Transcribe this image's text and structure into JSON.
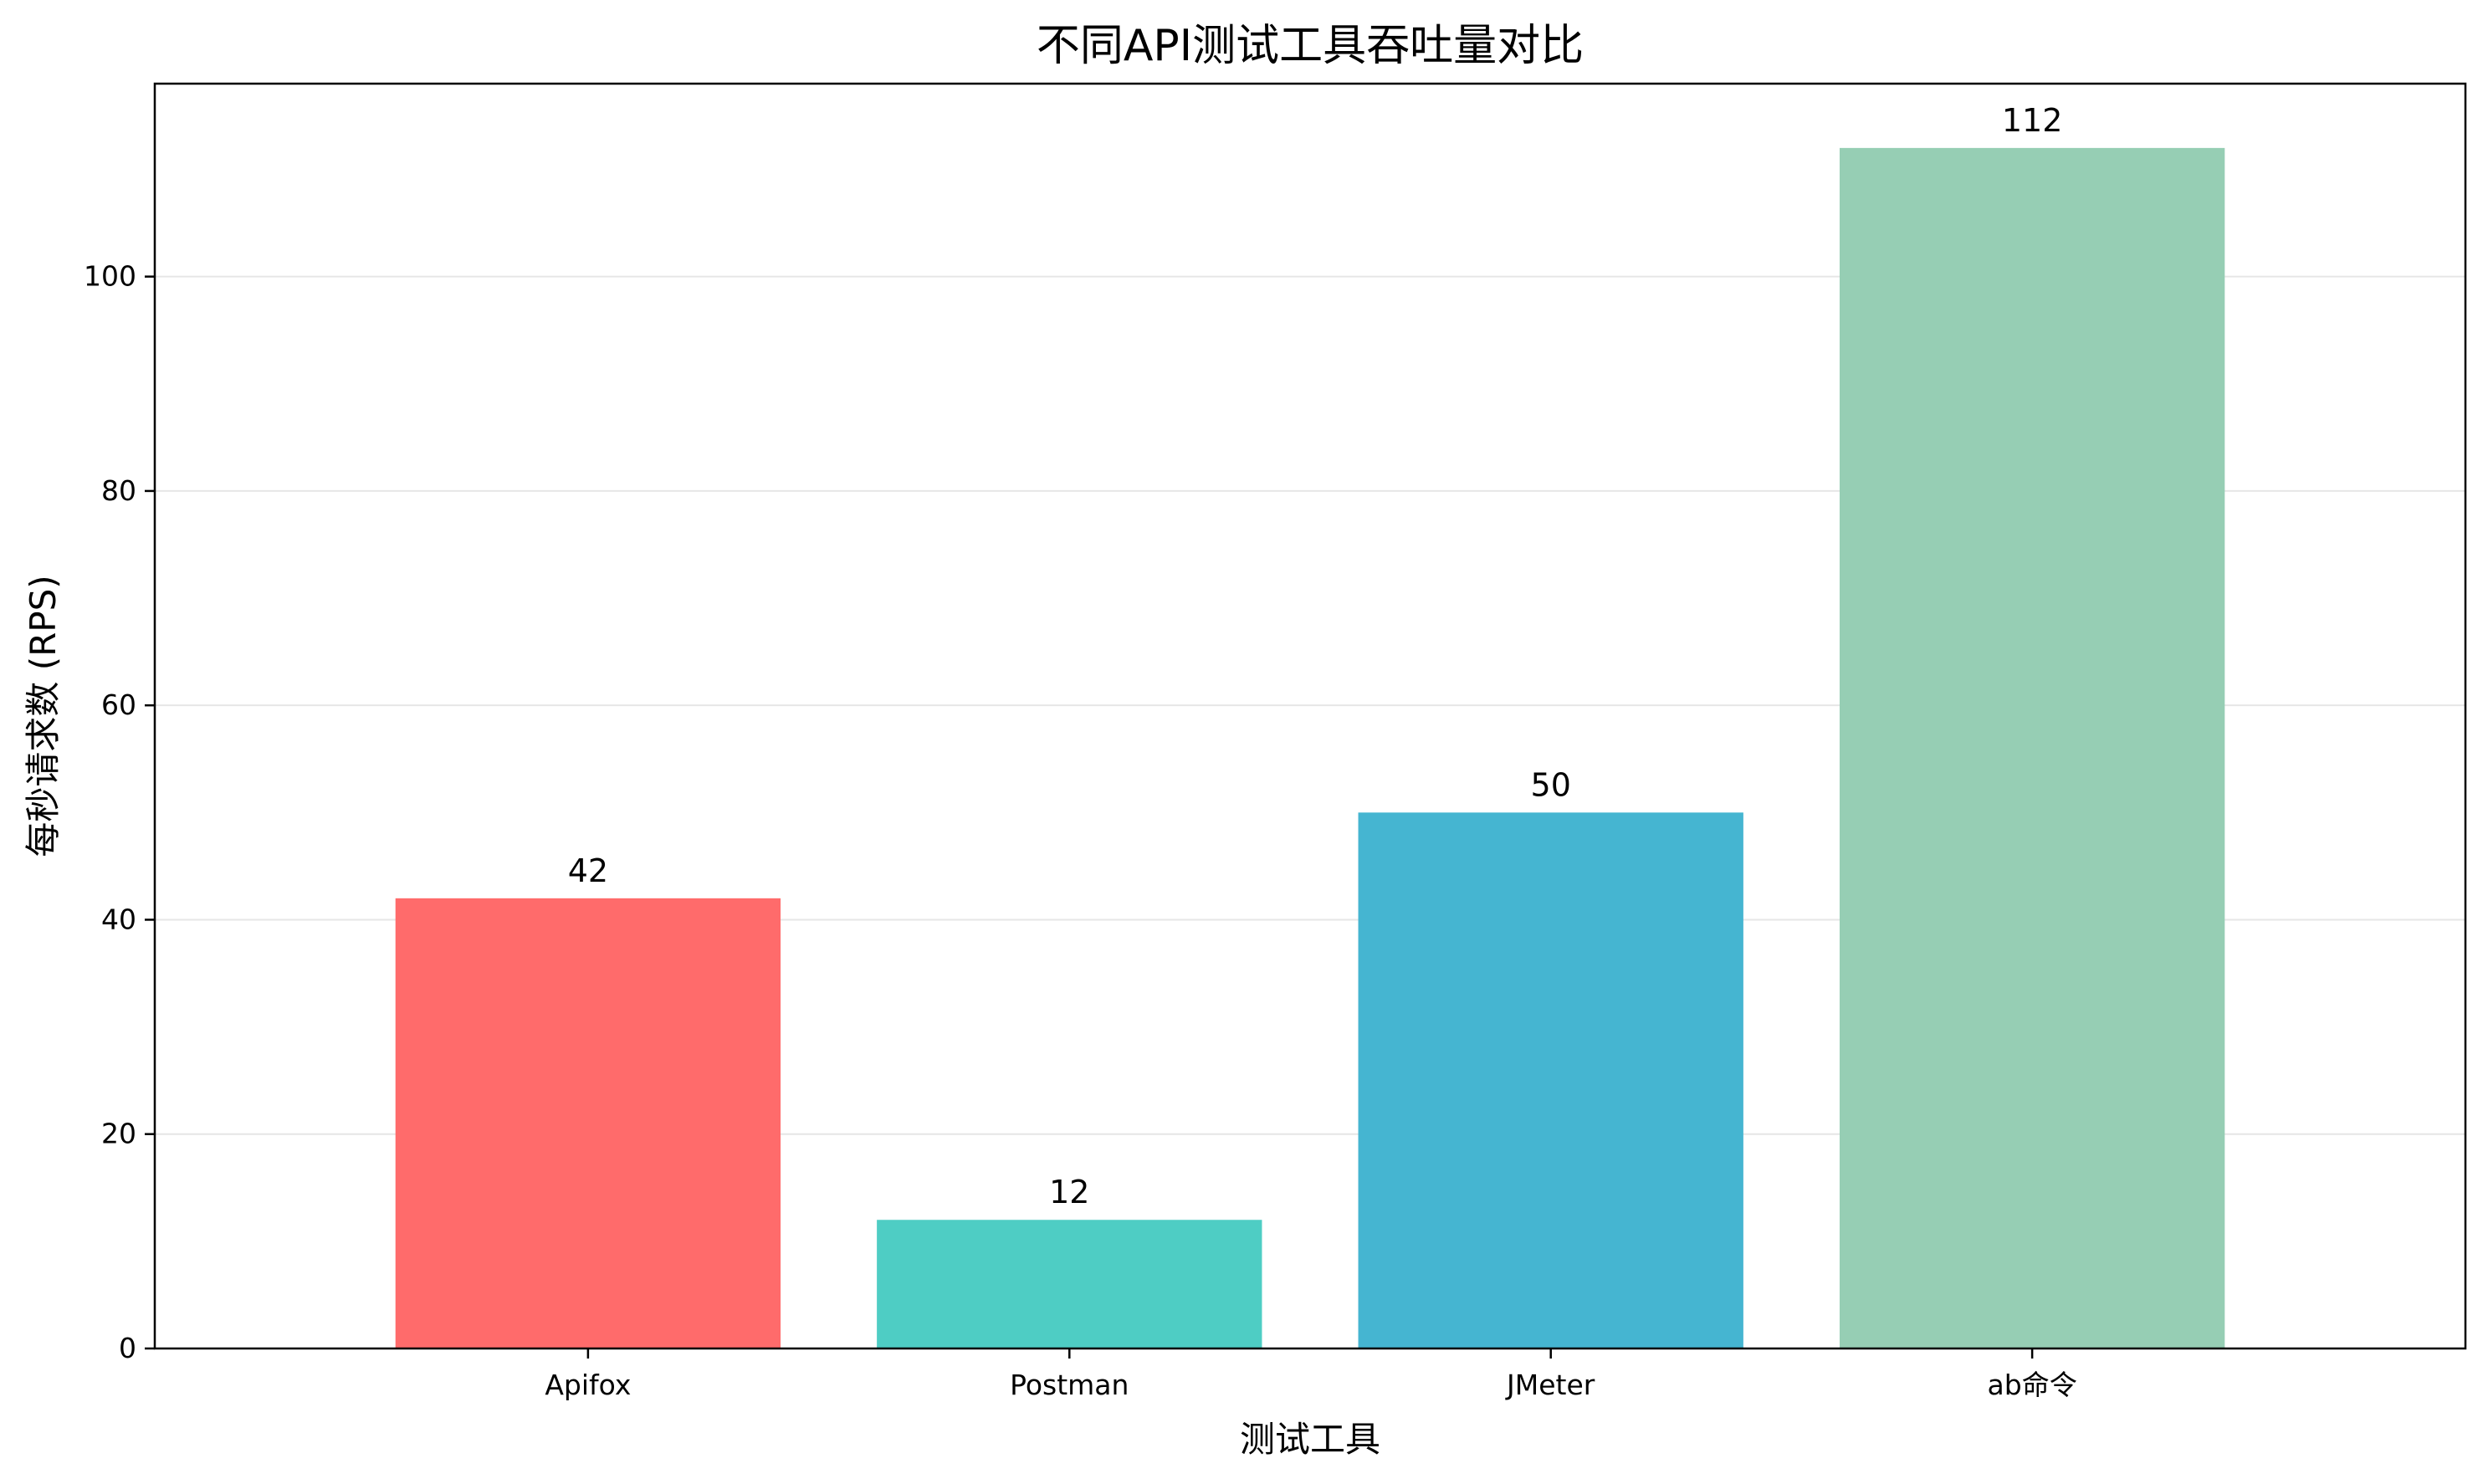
{
  "chart_data": {
    "type": "bar",
    "title": "不同API测试工具吞吐量对比",
    "xlabel": "测试工具",
    "ylabel": "每秒请求数 (RPS)",
    "categories": [
      "Apifox",
      "Postman",
      "JMeter",
      "ab命令"
    ],
    "values": [
      42,
      12,
      50,
      112
    ],
    "value_labels": [
      "42",
      "12",
      "50",
      "112"
    ],
    "colors": [
      "#FF6B6B",
      "#4ECDC4",
      "#45B5D1",
      "#96CEB4"
    ],
    "ylim": [
      0,
      118
    ],
    "yticks": [
      0,
      20,
      40,
      60,
      80,
      100
    ],
    "ytick_labels": [
      "0",
      "20",
      "40",
      "60",
      "80",
      "100"
    ],
    "grid": "y",
    "grid_color": "#e6e6e6",
    "legend": "none"
  }
}
